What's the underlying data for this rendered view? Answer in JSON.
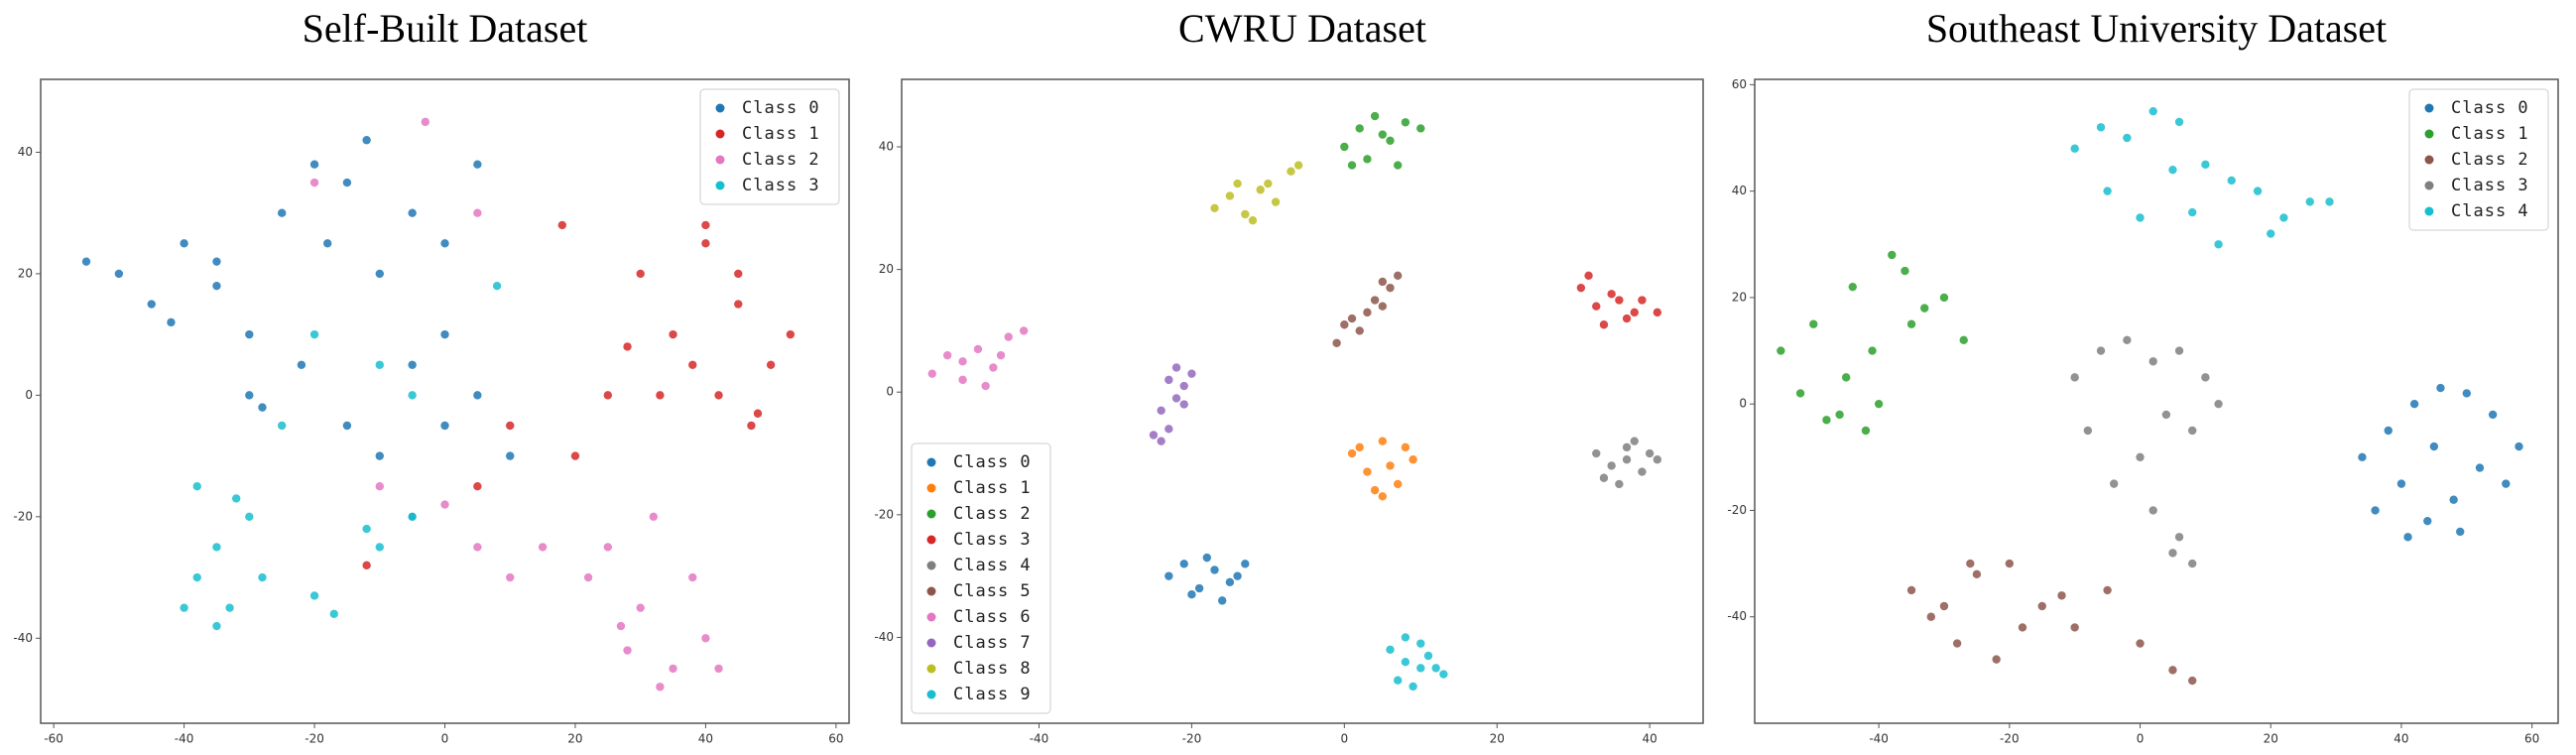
{
  "chart_data": [
    {
      "type": "scatter",
      "title": "Self-Built Dataset",
      "legend": "upper right",
      "xlim": [
        -62,
        62
      ],
      "ylim": [
        -54,
        52
      ],
      "xticks": [
        -60,
        -40,
        -20,
        0,
        20,
        40,
        60
      ],
      "yticks": [
        -40,
        -20,
        0,
        20,
        40
      ],
      "series": [
        {
          "name": "Class 0",
          "color": "#1f77b4",
          "x": [
            -50,
            -45,
            -40,
            -35,
            -30,
            -25,
            -20,
            -15,
            -18,
            -10,
            -5,
            0,
            5,
            -30,
            -22,
            -15,
            -5,
            0,
            5,
            10,
            -10,
            -5,
            0,
            -35,
            -28,
            -55,
            -42,
            -12
          ],
          "y": [
            20,
            15,
            25,
            18,
            10,
            30,
            38,
            35,
            25,
            20,
            30,
            25,
            38,
            0,
            5,
            -5,
            5,
            -5,
            0,
            -10,
            -10,
            -20,
            10,
            22,
            -2,
            22,
            12,
            42
          ]
        },
        {
          "name": "Class 1",
          "color": "#d62728",
          "x": [
            30,
            35,
            40,
            45,
            50,
            48,
            42,
            38,
            28,
            33,
            45,
            53,
            18,
            10,
            20,
            5,
            25,
            -12,
            40,
            47
          ],
          "y": [
            20,
            10,
            25,
            15,
            5,
            -3,
            0,
            5,
            8,
            0,
            20,
            10,
            28,
            -5,
            -10,
            -15,
            0,
            -28,
            28,
            -5
          ]
        },
        {
          "name": "Class 2",
          "color": "#e377c2",
          "x": [
            25,
            30,
            35,
            40,
            28,
            32,
            38,
            22,
            42,
            15,
            5,
            10,
            -3,
            5,
            -20,
            -10,
            0,
            33,
            27
          ],
          "y": [
            -25,
            -35,
            -45,
            -40,
            -42,
            -20,
            -30,
            -30,
            -45,
            -25,
            -25,
            -30,
            45,
            30,
            35,
            -15,
            -18,
            -48,
            -38
          ]
        },
        {
          "name": "Class 3",
          "color": "#17becf",
          "x": [
            -38,
            -35,
            -33,
            -30,
            -28,
            -38,
            -35,
            -20,
            -17,
            -10,
            -12,
            -5,
            -25,
            -20,
            -10,
            8,
            -5,
            -40,
            -32
          ],
          "y": [
            -30,
            -25,
            -35,
            -20,
            -30,
            -15,
            -38,
            -33,
            -36,
            -25,
            -22,
            -20,
            -5,
            10,
            5,
            18,
            0,
            -35,
            -17
          ]
        }
      ]
    },
    {
      "type": "scatter",
      "title": "CWRU Dataset",
      "legend": "lower left",
      "xlim": [
        -58,
        47
      ],
      "ylim": [
        -54,
        51
      ],
      "xticks": [
        -40,
        -20,
        0,
        20,
        40
      ],
      "yticks": [
        -40,
        -20,
        0,
        20,
        40
      ],
      "series": [
        {
          "name": "Class 0",
          "color": "#1f77b4",
          "x": [
            -23,
            -21,
            -19,
            -17,
            -15,
            -13,
            -20,
            -16,
            -18,
            -14
          ],
          "y": [
            -30,
            -28,
            -32,
            -29,
            -31,
            -28,
            -33,
            -34,
            -27,
            -30
          ]
        },
        {
          "name": "Class 1",
          "color": "#ff7f0e",
          "x": [
            1,
            3,
            5,
            7,
            9,
            4,
            6,
            2,
            8,
            5
          ],
          "y": [
            -10,
            -13,
            -8,
            -15,
            -11,
            -16,
            -12,
            -9,
            -9,
            -17
          ]
        },
        {
          "name": "Class 2",
          "color": "#2ca02c",
          "x": [
            0,
            2,
            4,
            6,
            8,
            10,
            3,
            7,
            5,
            1
          ],
          "y": [
            40,
            43,
            45,
            41,
            44,
            43,
            38,
            37,
            42,
            37
          ]
        },
        {
          "name": "Class 3",
          "color": "#d62728",
          "x": [
            31,
            33,
            35,
            37,
            39,
            41,
            34,
            38,
            32,
            36
          ],
          "y": [
            17,
            14,
            16,
            12,
            15,
            13,
            11,
            13,
            19,
            15
          ]
        },
        {
          "name": "Class 4",
          "color": "#7f7f7f",
          "x": [
            33,
            35,
            37,
            39,
            41,
            36,
            38,
            34,
            40,
            37
          ],
          "y": [
            -10,
            -12,
            -9,
            -13,
            -11,
            -15,
            -8,
            -14,
            -10,
            -11
          ]
        },
        {
          "name": "Class 5",
          "color": "#8c564b",
          "x": [
            -1,
            0,
            2,
            3,
            4,
            5,
            6,
            7,
            1,
            5
          ],
          "y": [
            8,
            11,
            10,
            13,
            15,
            14,
            17,
            19,
            12,
            18
          ]
        },
        {
          "name": "Class 6",
          "color": "#e377c2",
          "x": [
            -54,
            -52,
            -50,
            -48,
            -46,
            -44,
            -42,
            -50,
            -47,
            -45
          ],
          "y": [
            3,
            6,
            2,
            7,
            4,
            9,
            10,
            5,
            1,
            6
          ]
        },
        {
          "name": "Class 7",
          "color": "#9467bd",
          "x": [
            -25,
            -24,
            -23,
            -22,
            -21,
            -20,
            -23,
            -21,
            -24,
            -22
          ],
          "y": [
            -7,
            -3,
            -6,
            -1,
            1,
            3,
            2,
            -2,
            -8,
            4
          ]
        },
        {
          "name": "Class 8",
          "color": "#bcbd22",
          "x": [
            -17,
            -15,
            -13,
            -11,
            -9,
            -7,
            -14,
            -12,
            -10,
            -6
          ],
          "y": [
            30,
            32,
            29,
            33,
            31,
            36,
            34,
            28,
            34,
            37
          ]
        },
        {
          "name": "Class 9",
          "color": "#17becf",
          "x": [
            6,
            8,
            10,
            12,
            7,
            9,
            11,
            13,
            8,
            10
          ],
          "y": [
            -42,
            -44,
            -41,
            -45,
            -47,
            -48,
            -43,
            -46,
            -40,
            -45
          ]
        }
      ]
    },
    {
      "type": "scatter",
      "title": "Southeast University Dataset",
      "legend": "upper right",
      "xlim": [
        -59,
        64
      ],
      "ylim": [
        -60,
        61
      ],
      "xticks": [
        -40,
        -20,
        0,
        20,
        40,
        60
      ],
      "yticks": [
        -40,
        -20,
        0,
        20,
        40,
        60
      ],
      "series": [
        {
          "name": "Class 0",
          "color": "#1f77b4",
          "x": [
            34,
            38,
            42,
            46,
            50,
            54,
            58,
            36,
            40,
            44,
            48,
            52,
            56,
            45,
            41,
            49
          ],
          "y": [
            -10,
            -5,
            0,
            3,
            2,
            -2,
            -8,
            -20,
            -15,
            -22,
            -18,
            -12,
            -15,
            -8,
            -25,
            -24
          ]
        },
        {
          "name": "Class 1",
          "color": "#2ca02c",
          "x": [
            -55,
            -52,
            -48,
            -45,
            -42,
            -38,
            -35,
            -30,
            -27,
            -50,
            -44,
            -40,
            -36,
            -46,
            -41,
            -33
          ],
          "y": [
            10,
            2,
            -3,
            5,
            -5,
            28,
            15,
            20,
            12,
            15,
            22,
            0,
            25,
            -2,
            10,
            18
          ]
        },
        {
          "name": "Class 2",
          "color": "#8c564b",
          "x": [
            -35,
            -32,
            -28,
            -25,
            -20,
            -15,
            -10,
            -5,
            0,
            5,
            8,
            -30,
            -22,
            -18,
            -12,
            -26
          ],
          "y": [
            -35,
            -40,
            -45,
            -32,
            -30,
            -38,
            -42,
            -35,
            -45,
            -50,
            -52,
            -38,
            -48,
            -42,
            -36,
            -30
          ]
        },
        {
          "name": "Class 3",
          "color": "#7f7f7f",
          "x": [
            -10,
            -6,
            -2,
            2,
            6,
            10,
            12,
            -8,
            0,
            4,
            8,
            -4,
            2,
            6,
            5,
            8
          ],
          "y": [
            5,
            10,
            12,
            8,
            10,
            5,
            0,
            -5,
            -10,
            -2,
            -5,
            -15,
            -20,
            -25,
            -28,
            -30
          ]
        },
        {
          "name": "Class 4",
          "color": "#17becf",
          "x": [
            -10,
            -6,
            -2,
            2,
            6,
            10,
            14,
            18,
            22,
            26,
            29,
            -5,
            0,
            5,
            12,
            20,
            8
          ],
          "y": [
            48,
            52,
            50,
            55,
            53,
            45,
            42,
            40,
            35,
            38,
            38,
            40,
            35,
            44,
            30,
            32,
            36
          ]
        }
      ]
    }
  ]
}
